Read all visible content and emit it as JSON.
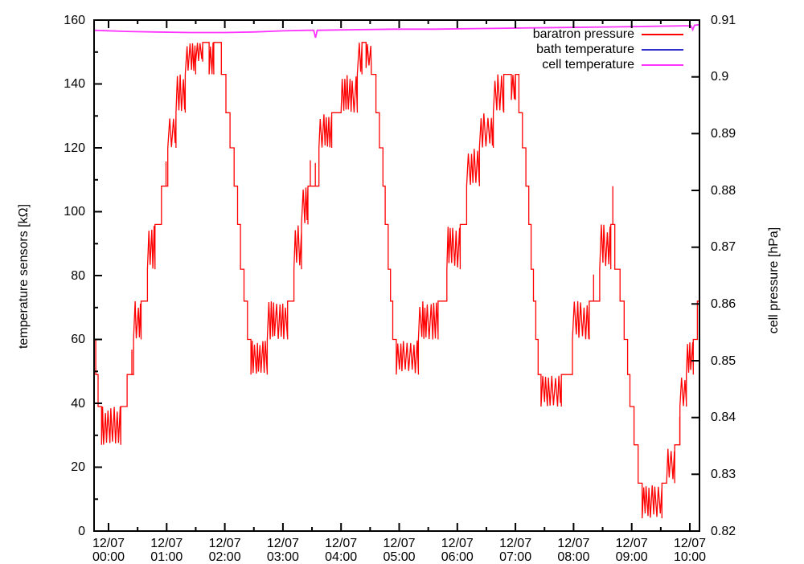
{
  "axes": {
    "y_left": {
      "label": "temperature sensors [kΩ]",
      "tick_labels": [
        "0",
        "20",
        "40",
        "60",
        "80",
        "100",
        "120",
        "140",
        "160"
      ],
      "minor_tick_step": 10,
      "range": [
        0,
        160
      ]
    },
    "y_right": {
      "label": "cell pressure [hPa]",
      "tick_labels": [
        "0.82",
        "0.83",
        "0.84",
        "0.85",
        "0.86",
        "0.87",
        "0.88",
        "0.89",
        "0.9",
        "0.91"
      ],
      "range": [
        0.82,
        0.91
      ]
    },
    "x": {
      "date_label": "12/07",
      "times": [
        "00:00",
        "01:00",
        "02:00",
        "03:00",
        "04:00",
        "05:00",
        "06:00",
        "07:00",
        "08:00",
        "09:00",
        "10:00"
      ],
      "minor_tick_minutes": 30,
      "range_hours": [
        -0.25,
        10.17
      ]
    }
  },
  "legend": {
    "entries": [
      {
        "label": "baratron pressure",
        "color": "#ff0000"
      },
      {
        "label": "bath temperature",
        "color": "#3030cc"
      },
      {
        "label": "cell temperature",
        "color": "#ff33ff"
      }
    ]
  },
  "chart_data": {
    "type": "line",
    "title": "",
    "xlabel": "",
    "x_axis_note": "time on 12/07 from 00:00 to 10:00, major ticks hourly, minor every 30 min",
    "ylabel_left": "temperature sensors [kΩ]",
    "ylabel_right": "cell pressure [hPa]",
    "ylim_left": [
      0,
      160
    ],
    "ylim_right": [
      0.82,
      0.91
    ],
    "grid": false,
    "legend_position": "top-right-inside",
    "series": [
      {
        "name": "baratron pressure",
        "color": "#ff0000",
        "axis": "left",
        "style": "quantized step trace with dense vertical noise bands",
        "quantized_levels_kohm": [
          4,
          8,
          15,
          27,
          39,
          49,
          60,
          72,
          82,
          96,
          108,
          120,
          131,
          143,
          153
        ],
        "band_format": "[hour_start, hour_end, low_kohm, high_kohm, mode] mode:0=flat,1=sparse spikes,2=dense noise,3=single spike",
        "bands": [
          [
            -0.25,
            -0.22,
            60,
            60,
            0
          ],
          [
            -0.22,
            -0.18,
            49,
            49,
            0
          ],
          [
            -0.18,
            -0.12,
            39,
            39,
            0
          ],
          [
            -0.12,
            0.21,
            27,
            39,
            2
          ],
          [
            0.21,
            0.32,
            39,
            49,
            1
          ],
          [
            0.32,
            0.43,
            49,
            60,
            1
          ],
          [
            0.43,
            0.56,
            60,
            72,
            2
          ],
          [
            0.56,
            0.67,
            72,
            82,
            1
          ],
          [
            0.67,
            0.8,
            82,
            96,
            2
          ],
          [
            0.8,
            0.91,
            96,
            108,
            1
          ],
          [
            0.91,
            1.02,
            108,
            120,
            1
          ],
          [
            1.02,
            1.16,
            120,
            131,
            2
          ],
          [
            1.16,
            1.32,
            131,
            143,
            2
          ],
          [
            1.32,
            1.5,
            143,
            153,
            2
          ],
          [
            1.5,
            1.62,
            147,
            153,
            2
          ],
          [
            1.62,
            1.73,
            153,
            153,
            0
          ],
          [
            1.73,
            1.81,
            143,
            153,
            2
          ],
          [
            1.81,
            1.94,
            153,
            153,
            0
          ],
          [
            1.94,
            2.02,
            143,
            143,
            0
          ],
          [
            2.02,
            2.09,
            131,
            131,
            0
          ],
          [
            2.09,
            2.16,
            120,
            120,
            0
          ],
          [
            2.16,
            2.22,
            108,
            108,
            0
          ],
          [
            2.22,
            2.27,
            96,
            96,
            0
          ],
          [
            2.27,
            2.33,
            82,
            82,
            0
          ],
          [
            2.33,
            2.39,
            72,
            72,
            0
          ],
          [
            2.39,
            2.45,
            60,
            60,
            0
          ],
          [
            2.45,
            2.73,
            49,
            60,
            2
          ],
          [
            2.73,
            3.08,
            60,
            72,
            2
          ],
          [
            3.08,
            3.19,
            72,
            82,
            1
          ],
          [
            3.19,
            3.32,
            82,
            96,
            2
          ],
          [
            3.32,
            3.43,
            96,
            108,
            2
          ],
          [
            3.43,
            3.62,
            108,
            120,
            1
          ],
          [
            3.62,
            3.84,
            120,
            131,
            2
          ],
          [
            3.84,
            4.0,
            131,
            131,
            0
          ],
          [
            4.0,
            4.28,
            131,
            143,
            2
          ],
          [
            4.28,
            4.36,
            143,
            153,
            2
          ],
          [
            4.36,
            4.43,
            153,
            153,
            0
          ],
          [
            4.43,
            4.52,
            145,
            153,
            2
          ],
          [
            4.52,
            4.6,
            143,
            143,
            0
          ],
          [
            4.6,
            4.66,
            131,
            131,
            0
          ],
          [
            4.66,
            4.72,
            120,
            120,
            0
          ],
          [
            4.72,
            4.76,
            108,
            108,
            0
          ],
          [
            4.76,
            4.81,
            96,
            96,
            0
          ],
          [
            4.81,
            4.85,
            82,
            82,
            0
          ],
          [
            4.85,
            4.89,
            72,
            72,
            0
          ],
          [
            4.89,
            4.95,
            60,
            60,
            0
          ],
          [
            4.95,
            5.33,
            49,
            60,
            2
          ],
          [
            5.33,
            5.67,
            60,
            72,
            2
          ],
          [
            5.67,
            5.82,
            72,
            82,
            1
          ],
          [
            5.82,
            6.05,
            82,
            96,
            2
          ],
          [
            6.05,
            6.16,
            96,
            108,
            1
          ],
          [
            6.16,
            6.38,
            108,
            120,
            2
          ],
          [
            6.38,
            6.62,
            120,
            131,
            2
          ],
          [
            6.62,
            6.8,
            131,
            143,
            2
          ],
          [
            6.8,
            6.93,
            143,
            143,
            0
          ],
          [
            6.93,
            7.0,
            135,
            143,
            2
          ],
          [
            7.0,
            7.06,
            143,
            143,
            0
          ],
          [
            7.06,
            7.12,
            131,
            131,
            0
          ],
          [
            7.12,
            7.18,
            120,
            120,
            0
          ],
          [
            7.18,
            7.23,
            108,
            108,
            0
          ],
          [
            7.23,
            7.27,
            96,
            96,
            0
          ],
          [
            7.27,
            7.31,
            82,
            82,
            0
          ],
          [
            7.31,
            7.35,
            72,
            72,
            0
          ],
          [
            7.35,
            7.39,
            60,
            60,
            0
          ],
          [
            7.39,
            7.44,
            49,
            49,
            0
          ],
          [
            7.44,
            7.79,
            39,
            49,
            2
          ],
          [
            7.79,
            7.98,
            49,
            60,
            1
          ],
          [
            7.98,
            8.27,
            60,
            72,
            2
          ],
          [
            8.27,
            8.45,
            72,
            82,
            1
          ],
          [
            8.45,
            8.64,
            82,
            96,
            2
          ],
          [
            8.64,
            8.71,
            96,
            108,
            3
          ],
          [
            8.71,
            8.8,
            82,
            82,
            0
          ],
          [
            8.8,
            8.87,
            72,
            72,
            0
          ],
          [
            8.87,
            8.93,
            60,
            60,
            0
          ],
          [
            8.93,
            8.97,
            49,
            49,
            0
          ],
          [
            8.97,
            9.04,
            39,
            39,
            0
          ],
          [
            9.04,
            9.11,
            27,
            27,
            0
          ],
          [
            9.11,
            9.18,
            15,
            15,
            0
          ],
          [
            9.18,
            9.52,
            4,
            15,
            2
          ],
          [
            9.52,
            9.6,
            15,
            15,
            0
          ],
          [
            9.6,
            9.74,
            15,
            27,
            2
          ],
          [
            9.74,
            9.83,
            27,
            39,
            1
          ],
          [
            9.83,
            9.94,
            39,
            49,
            2
          ],
          [
            9.94,
            10.06,
            49,
            60,
            2
          ],
          [
            10.06,
            10.13,
            60,
            72,
            1
          ],
          [
            10.13,
            10.17,
            72,
            72,
            0
          ]
        ]
      },
      {
        "name": "bath temperature",
        "color": "#3030cc",
        "axis": "left",
        "visible_in_plot": false,
        "points": []
      },
      {
        "name": "cell temperature",
        "color": "#ff33ff",
        "axis": "right",
        "point_format": "[hour, hPa]",
        "points": [
          [
            -0.25,
            0.9082
          ],
          [
            0.3,
            0.908
          ],
          [
            0.8,
            0.9079
          ],
          [
            1.4,
            0.9078
          ],
          [
            2.0,
            0.9078
          ],
          [
            2.5,
            0.9079
          ],
          [
            3.0,
            0.9081
          ],
          [
            3.4,
            0.9082
          ],
          [
            3.53,
            0.9082
          ],
          [
            3.56,
            0.9069
          ],
          [
            3.59,
            0.9082
          ],
          [
            4.2,
            0.9083
          ],
          [
            4.9,
            0.9084
          ],
          [
            5.6,
            0.9084
          ],
          [
            6.3,
            0.9085
          ],
          [
            7.1,
            0.9086
          ],
          [
            7.9,
            0.9087
          ],
          [
            8.7,
            0.9088
          ],
          [
            9.3,
            0.9089
          ],
          [
            9.9,
            0.909
          ],
          [
            10.02,
            0.909
          ],
          [
            10.05,
            0.9083
          ],
          [
            10.08,
            0.9091
          ],
          [
            10.17,
            0.9092
          ]
        ]
      }
    ]
  }
}
